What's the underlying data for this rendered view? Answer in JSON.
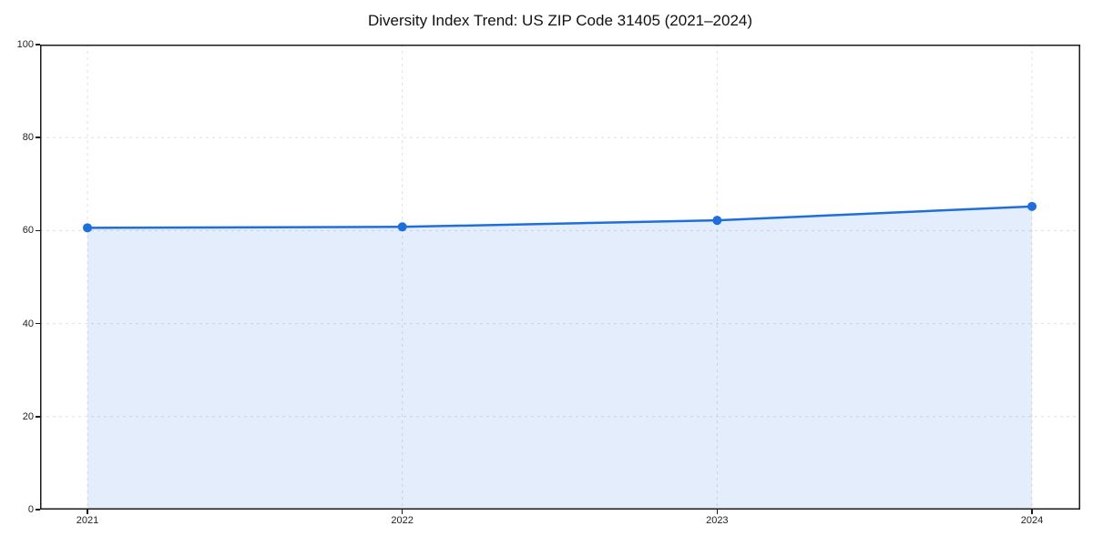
{
  "chart_data": {
    "type": "area",
    "x": [
      "2021",
      "2022",
      "2023",
      "2024"
    ],
    "values": [
      60.6,
      60.8,
      62.2,
      65.2
    ],
    "title": "Diversity Index Trend: US ZIP Code 31405 (2021–2024)",
    "xlabel": "",
    "ylabel": "",
    "ylim": [
      0,
      100
    ],
    "yticks": [
      0,
      20,
      40,
      60,
      80,
      100
    ],
    "grid": true,
    "grid_style": "dashed",
    "legend": "none",
    "line_color": "#1f6fdb",
    "marker_color": "#1f6fdb",
    "fill_color": "rgba(31,111,219,0.12)",
    "grid_color": "#e0e0e0",
    "axis_color": "#1a1a1a",
    "tick_label_color": "#222222",
    "title_color": "#111111",
    "background": "#ffffff"
  }
}
